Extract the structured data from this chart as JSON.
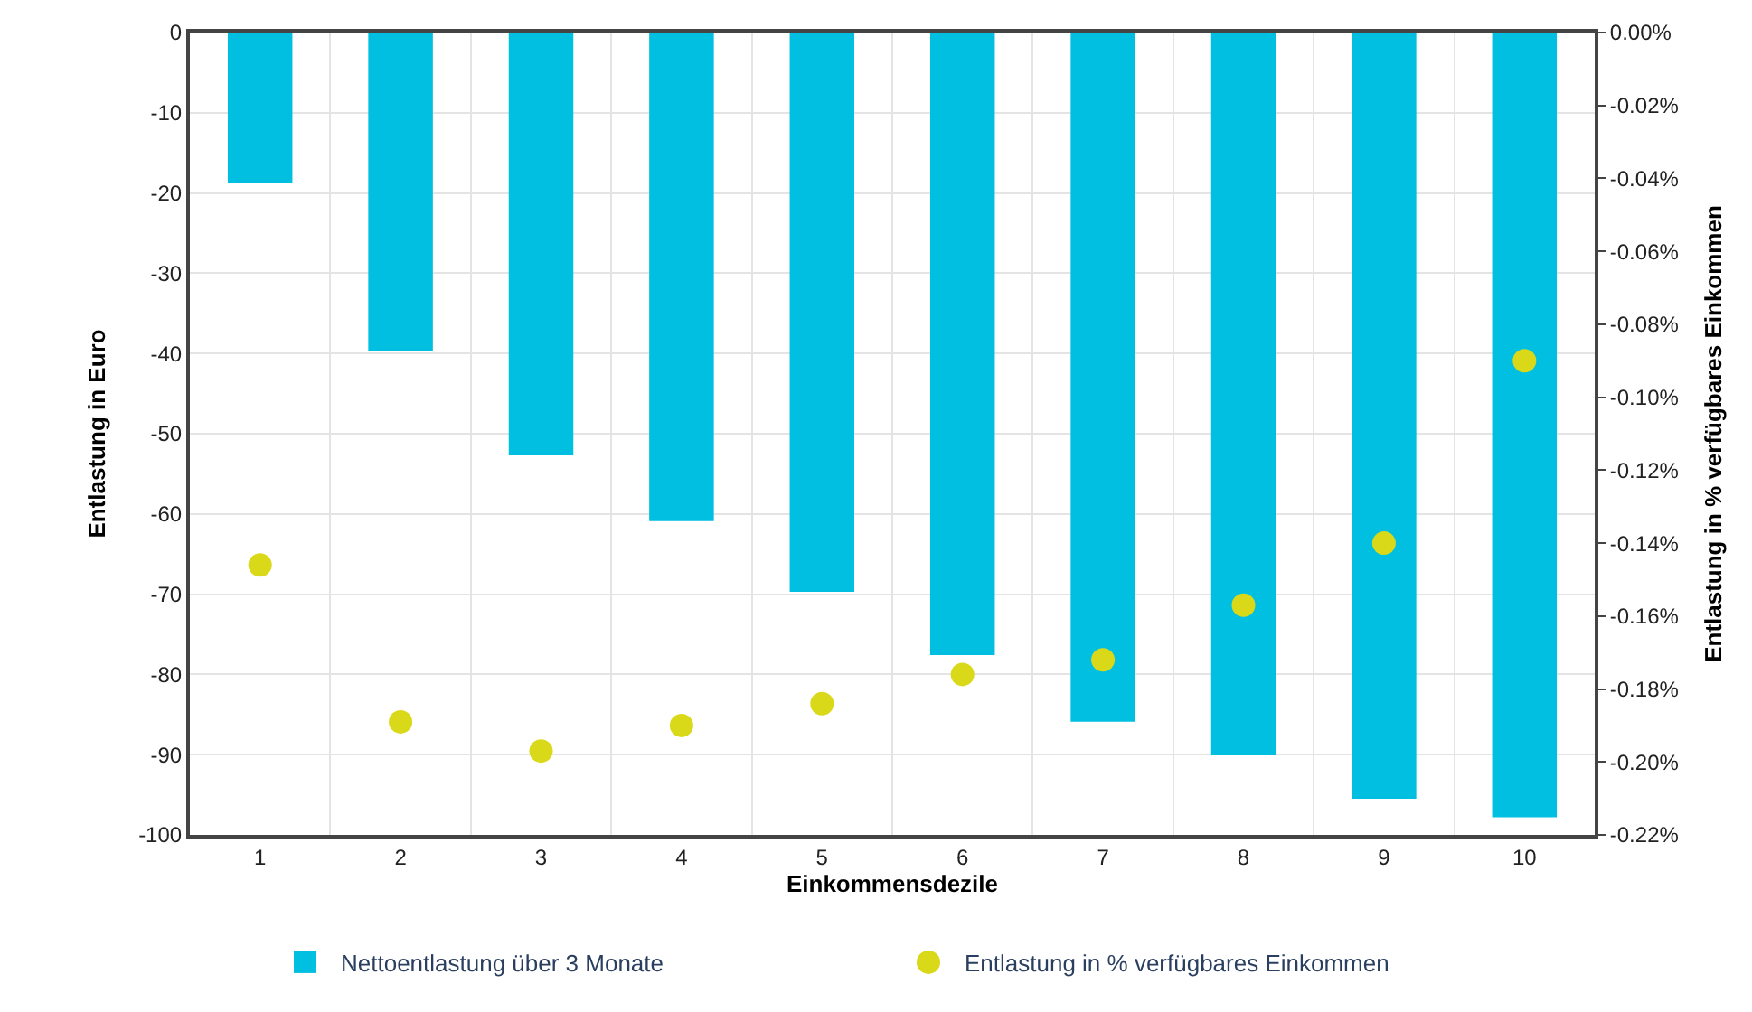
{
  "chart_data": {
    "type": "bar",
    "categories": [
      "1",
      "2",
      "3",
      "4",
      "5",
      "6",
      "7",
      "8",
      "9",
      "10"
    ],
    "xlabel": "Einkommensdezile",
    "ylabel": "Entlastung in Euro",
    "y2label": "Entlastung in % verfügbares Einkommen",
    "series": [
      {
        "name": "Nettoentlastung über 3 Monate",
        "color": "#00bfe0",
        "values": [
          -18.8,
          -39.7,
          -52.7,
          -60.9,
          -69.7,
          -77.6,
          -85.9,
          -90.1,
          -95.5,
          -97.8
        ]
      },
      {
        "name": "Entlastung in % verfügbares Einkommen",
        "type": "scatter",
        "axis": "y2",
        "marker": "circle",
        "color": "#d9d91a",
        "values": [
          -0.146,
          -0.189,
          -0.197,
          -0.19,
          -0.184,
          -0.176,
          -0.172,
          -0.157,
          -0.14,
          -0.09
        ]
      }
    ],
    "ylim": [
      -100,
      0
    ],
    "yticks": [
      -100,
      -90,
      -80,
      -70,
      -60,
      -50,
      -40,
      -30,
      -20,
      -10,
      0
    ],
    "y2lim": [
      -0.22,
      0
    ],
    "y2ticks": [
      {
        "value": -0.22,
        "label": "-0.22%"
      },
      {
        "value": -0.2,
        "label": "-0.20%"
      },
      {
        "value": -0.18,
        "label": "-0.18%"
      },
      {
        "value": -0.16,
        "label": "-0.16%"
      },
      {
        "value": -0.14,
        "label": "-0.14%"
      },
      {
        "value": -0.12,
        "label": "-0.12%"
      },
      {
        "value": -0.1,
        "label": "-0.10%"
      },
      {
        "value": -0.08,
        "label": "-0.08%"
      },
      {
        "value": -0.06,
        "label": "-0.06%"
      },
      {
        "value": -0.04,
        "label": "-0.04%"
      },
      {
        "value": -0.02,
        "label": "-0.02%"
      },
      {
        "value": 0,
        "label": "0.00%"
      }
    ],
    "grid": true,
    "legend": "bottom"
  }
}
